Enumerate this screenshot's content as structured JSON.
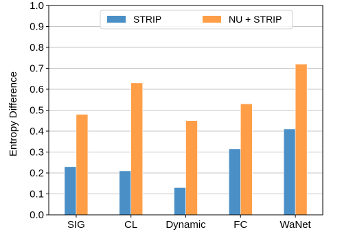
{
  "chart_data": {
    "type": "bar",
    "categories": [
      "SIG",
      "CL",
      "Dynamic",
      "FC",
      "WaNet"
    ],
    "series": [
      {
        "name": "STRIP",
        "values": [
          0.23,
          0.21,
          0.13,
          0.315,
          0.41
        ],
        "color": "#4a8fc6"
      },
      {
        "name": "NU + STRIP",
        "values": [
          0.48,
          0.63,
          0.45,
          0.53,
          0.72
        ],
        "color": "#ff9e47"
      }
    ],
    "title": "",
    "xlabel": "",
    "ylabel": "Entropy Difference",
    "ylim": [
      0,
      1.0
    ],
    "yticks": [
      "0.0",
      "0.1",
      "0.2",
      "0.3",
      "0.4",
      "0.5",
      "0.6",
      "0.7",
      "0.8",
      "0.9",
      "1.0"
    ],
    "grid": "horizontal",
    "legend_position": "top-center"
  }
}
